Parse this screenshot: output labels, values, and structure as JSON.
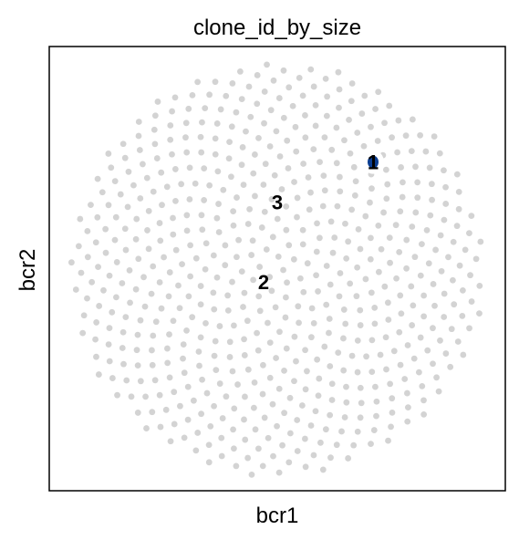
{
  "chart_data": {
    "type": "scatter",
    "title": "clone_id_by_size",
    "xlabel": "bcr1",
    "ylabel": "bcr2",
    "grid": false,
    "legend": "none",
    "x_ticks": [],
    "y_ticks": [],
    "point_color": "#d3d3d3",
    "highlight_color": "#0b3d91",
    "frame_color": "#000000",
    "series": [
      {
        "name": "1",
        "shape": "filled disc of points",
        "n_points": 600,
        "highlighted": [
          {
            "x": 0.71,
            "y": 0.74
          }
        ]
      }
    ],
    "labels": [
      {
        "text": "1",
        "x": 0.71,
        "y": 0.74
      },
      {
        "text": "3",
        "x": 0.5,
        "y": 0.65
      },
      {
        "text": "2",
        "x": 0.47,
        "y": 0.47
      }
    ]
  }
}
